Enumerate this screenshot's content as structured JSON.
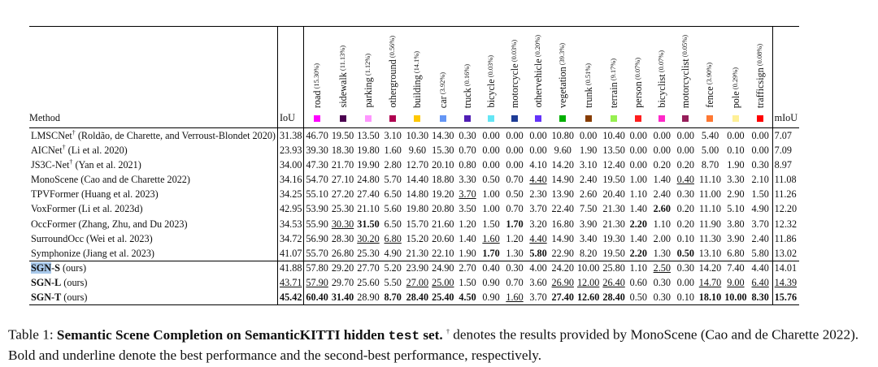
{
  "table": {
    "method_header": "Method",
    "iou_header": "IoU",
    "miou_header": "mIoU",
    "classes": [
      {
        "name": "road",
        "pct": "(15.30%)",
        "color": "#ff00ff"
      },
      {
        "name": "sidewalk",
        "pct": "(11.13%)",
        "color": "#4b0050"
      },
      {
        "name": "parking",
        "pct": "(1.12%)",
        "color": "#ff96ff"
      },
      {
        "name": "otherground",
        "pct": "(0.56%)",
        "color": "#af0050"
      },
      {
        "name": "building",
        "pct": "(14.1%)",
        "color": "#ffc800"
      },
      {
        "name": "car",
        "pct": "(3.92%)",
        "color": "#6496f5"
      },
      {
        "name": "truck",
        "pct": "(0.16%)",
        "color": "#501eb4"
      },
      {
        "name": "bicycle",
        "pct": "(0.03%)",
        "color": "#64e6f5"
      },
      {
        "name": "motorcycle",
        "pct": "(0.03%)",
        "color": "#1e3c96"
      },
      {
        "name": "othervehicle",
        "pct": "(0.20%)",
        "color": "#6432fa"
      },
      {
        "name": "vegetation",
        "pct": "(39.3%)",
        "color": "#00af00"
      },
      {
        "name": "trunk",
        "pct": "(0.51%)",
        "color": "#873c00"
      },
      {
        "name": "terrain",
        "pct": "(9.17%)",
        "color": "#96f050"
      },
      {
        "name": "person",
        "pct": "(0.07%)",
        "color": "#ff1e1e"
      },
      {
        "name": "bicyclist",
        "pct": "(0.07%)",
        "color": "#ff28c8"
      },
      {
        "name": "motorcyclist",
        "pct": "(0.05%)",
        "color": "#961e5a"
      },
      {
        "name": "fence",
        "pct": "(3.90%)",
        "color": "#ff7832"
      },
      {
        "name": "pole",
        "pct": "(0.29%)",
        "color": "#fff096"
      },
      {
        "name": "trafficsign",
        "pct": "(0.08%)",
        "color": "#ff0000"
      }
    ],
    "groups": [
      {
        "rows": [
          {
            "method": "LMSCNet",
            "sup": "†",
            "cite": " (Roldão, de Charette, and Verroust-Blondet 2020)",
            "iou": "31.38",
            "vals": [
              "46.70",
              "19.50",
              "13.50",
              "3.10",
              "10.30",
              "14.30",
              "0.30",
              "0.00",
              "0.00",
              "0.00",
              "10.80",
              "0.00",
              "10.40",
              "0.00",
              "0.00",
              "0.00",
              "5.40",
              "0.00",
              "0.00"
            ],
            "miou": "7.07"
          },
          {
            "method": "AICNet",
            "sup": "†",
            "cite": " (Li et al. 2020)",
            "iou": "23.93",
            "vals": [
              "39.30",
              "18.30",
              "19.80",
              "1.60",
              "9.60",
              "15.30",
              "0.70",
              "0.00",
              "0.00",
              "0.00",
              "9.60",
              "1.90",
              "13.50",
              "0.00",
              "0.00",
              "0.00",
              "5.00",
              "0.10",
              "0.00"
            ],
            "miou": "7.09"
          },
          {
            "method": "JS3C-Net",
            "sup": "†",
            "cite": " (Yan et al. 2021)",
            "iou": "34.00",
            "vals": [
              "47.30",
              "21.70",
              "19.90",
              "2.80",
              "12.70",
              "20.10",
              "0.80",
              "0.00",
              "0.00",
              "4.10",
              "14.20",
              "3.10",
              "12.40",
              "0.00",
              "0.20",
              "0.20",
              "8.70",
              "1.90",
              "0.30"
            ],
            "miou": "8.97"
          },
          {
            "method": "MonoScene",
            "sup": "",
            "cite": " (Cao and de Charette 2022)",
            "iou": "34.16",
            "vals": [
              "54.70",
              "27.10",
              "24.80",
              "5.70",
              "14.40",
              "18.80",
              "3.30",
              "0.50",
              "0.70",
              "{u}4.40",
              "14.90",
              "2.40",
              "19.50",
              "1.00",
              "1.40",
              "{u}0.40",
              "11.10",
              "3.30",
              "2.10"
            ],
            "miou": "11.08"
          },
          {
            "method": "TPVFormer",
            "sup": "",
            "cite": " (Huang et al. 2023)",
            "iou": "34.25",
            "vals": [
              "55.10",
              "27.20",
              "27.40",
              "6.50",
              "14.80",
              "19.20",
              "{u}3.70",
              "1.00",
              "0.50",
              "2.30",
              "13.90",
              "2.60",
              "20.40",
              "1.10",
              "2.40",
              "0.30",
              "11.00",
              "2.90",
              "1.50"
            ],
            "miou": "11.26"
          },
          {
            "method": "VoxFormer",
            "sup": "",
            "cite": " (Li et al. 2023d)",
            "iou": "42.95",
            "vals": [
              "53.90",
              "25.30",
              "21.10",
              "5.60",
              "19.80",
              "20.80",
              "3.50",
              "1.00",
              "0.70",
              "3.70",
              "22.40",
              "7.50",
              "21.30",
              "1.40",
              "{b}2.60",
              "0.20",
              "11.10",
              "5.10",
              "4.90"
            ],
            "miou": "12.20"
          },
          {
            "method": "OccFormer",
            "sup": "",
            "cite": " (Zhang, Zhu, and Du 2023)",
            "iou": "34.53",
            "vals": [
              "55.90",
              "{u}30.30",
              "{b}31.50",
              "6.50",
              "15.70",
              "21.60",
              "1.20",
              "1.50",
              "{b}1.70",
              "3.20",
              "16.80",
              "3.90",
              "21.30",
              "{b}2.20",
              "1.10",
              "0.20",
              "11.90",
              "3.80",
              "3.70"
            ],
            "miou": "12.32"
          },
          {
            "method": "SurroundOcc",
            "sup": "",
            "cite": " (Wei et al. 2023)",
            "iou": "34.72",
            "vals": [
              "56.90",
              "28.30",
              "{u}30.20",
              "{u}6.80",
              "15.20",
              "20.60",
              "1.40",
              "{u}1.60",
              "1.20",
              "{u}4.40",
              "14.90",
              "3.40",
              "19.30",
              "1.40",
              "2.00",
              "0.10",
              "11.30",
              "3.90",
              "2.40"
            ],
            "miou": "11.86"
          },
          {
            "method": "Symphonize",
            "sup": "",
            "cite": " (Jiang et al. 2023)",
            "iou": "41.07",
            "vals": [
              "55.70",
              "26.80",
              "25.30",
              "4.90",
              "21.30",
              "22.10",
              "1.90",
              "{b}1.70",
              "1.30",
              "{b}5.80",
              "22.90",
              "8.20",
              "19.50",
              "{b}2.20",
              "1.30",
              "{b}0.50",
              "13.10",
              "6.80",
              "5.80"
            ],
            "miou": "13.02"
          }
        ]
      },
      {
        "rows": [
          {
            "method": "SGN-S",
            "sup": "",
            "cite": " (ours)",
            "iou": "41.88",
            "vals": [
              "57.80",
              "29.20",
              "27.70",
              "5.20",
              "23.90",
              "24.90",
              "2.70",
              "0.40",
              "0.30",
              "4.00",
              "24.20",
              "10.00",
              "25.80",
              "1.10",
              "{u}2.50",
              "0.30",
              "14.20",
              "7.40",
              "4.40"
            ],
            "miou": "14.01"
          },
          {
            "method": "SGN-L",
            "sup": "",
            "cite": " (ours)",
            "iou": "{u}43.71",
            "vals": [
              "{u}57.90",
              "29.70",
              "25.60",
              "5.50",
              "{u}27.00",
              "{u}25.00",
              "1.50",
              "0.90",
              "0.70",
              "3.60",
              "{u}26.90",
              "{u}12.00",
              "{u}26.40",
              "0.60",
              "0.30",
              "0.00",
              "{u}14.70",
              "{u}9.00",
              "{u}6.40"
            ],
            "miou": "{u}14.39"
          },
          {
            "method": "SGN-T",
            "sup": "",
            "cite": " (ours)",
            "iou": "{b}45.42",
            "vals": [
              "{b}60.40",
              "{b}31.40",
              "28.90",
              "{b}8.70",
              "{b}28.40",
              "{b}25.40",
              "{b}4.50",
              "0.90",
              "{u}1.60",
              "3.70",
              "{b}27.40",
              "{b}12.60",
              "{b}28.40",
              "0.50",
              "0.30",
              "0.10",
              "{b}18.10",
              "{b}10.00",
              "{b}8.30"
            ],
            "miou": "{b}15.76"
          }
        ]
      }
    ]
  },
  "caption": {
    "label": "Table 1: ",
    "bold_title": "Semantic Scene Completion on SemanticKITTI hidden ",
    "mono": "test",
    "bold_end": " set.",
    "dagger": "†",
    "rest": " denotes the results provided by MonoScene (Cao and de Charette 2022). Bold and underline denote the best performance and the second-best performance, respectively."
  }
}
